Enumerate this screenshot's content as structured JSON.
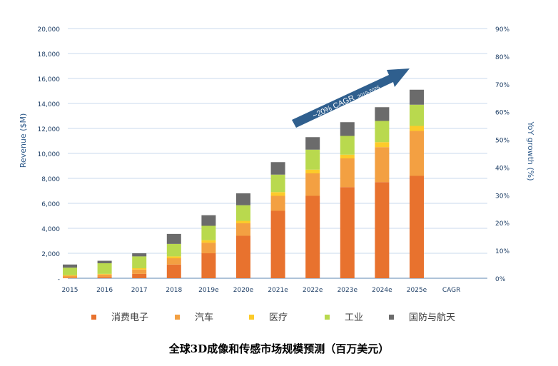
{
  "chart_data": {
    "type": "bar",
    "stacked": true,
    "title": "全球3D成像和传感市场规模预测（百万美元）",
    "ylabel": "Revenue ($M)",
    "y2label": "YoY growth (%)",
    "ylim": [
      0,
      20000
    ],
    "y2lim": [
      0,
      90
    ],
    "yticks": [
      "-",
      "2,000",
      "4,000",
      "6,000",
      "8,000",
      "10,000",
      "12,000",
      "14,000",
      "16,000",
      "18,000",
      "20,000"
    ],
    "y2ticks": [
      "0%",
      "10%",
      "20%",
      "30%",
      "40%",
      "50%",
      "60%",
      "70%",
      "80%",
      "90%"
    ],
    "categories": [
      "2015",
      "2016",
      "2017",
      "2018",
      "2019e",
      "2020e",
      "2021e",
      "2022e",
      "2023e",
      "2024e",
      "2025e",
      "CAGR"
    ],
    "series": [
      {
        "name": "消费电子",
        "color": "#E8722E",
        "values": [
          50,
          100,
          350,
          1100,
          2000,
          3400,
          5400,
          6600,
          7300,
          7700,
          8200,
          null
        ]
      },
      {
        "name": "汽车",
        "color": "#F3A042",
        "values": [
          150,
          200,
          350,
          500,
          850,
          1000,
          1200,
          1800,
          2300,
          2800,
          3600,
          null
        ]
      },
      {
        "name": "医疗",
        "color": "#FCCB2A",
        "values": [
          50,
          50,
          100,
          150,
          200,
          200,
          300,
          300,
          300,
          400,
          400,
          null
        ]
      },
      {
        "name": "工业",
        "color": "#B9D94E",
        "values": [
          600,
          850,
          950,
          1000,
          1150,
          1250,
          1400,
          1600,
          1500,
          1700,
          1700,
          null
        ]
      },
      {
        "name": "国防与航天",
        "color": "#6B6B6B",
        "values": [
          250,
          200,
          250,
          800,
          850,
          950,
          1000,
          1000,
          1100,
          1100,
          1200,
          null
        ]
      }
    ],
    "annotation": {
      "text": "~20% CAGR",
      "subtext": "2019-2025"
    },
    "legend_position": "bottom",
    "grid": true
  }
}
